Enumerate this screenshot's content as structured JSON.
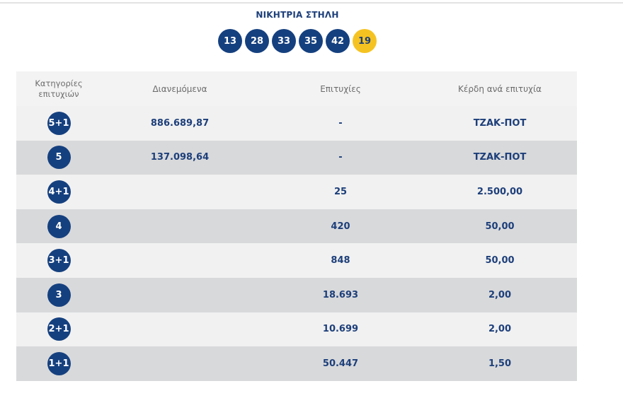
{
  "header": {
    "title": "ΝΙΚΗΤΡΙΑ ΣΤΗΛΗ",
    "numbers": [
      "13",
      "28",
      "33",
      "35",
      "42"
    ],
    "joker": "19"
  },
  "table": {
    "columns": [
      "Κατηγορίες επιτυχιών",
      "Διανεμόμενα",
      "Επιτυχίες",
      "Κέρδη ανά επιτυχία"
    ],
    "rows": [
      {
        "category": "5+1",
        "distributed": "886.689,87",
        "winners": "-",
        "prize": "ΤΖΑΚ-ΠΟΤ"
      },
      {
        "category": "5",
        "distributed": "137.098,64",
        "winners": "-",
        "prize": "ΤΖΑΚ-ΠΟΤ"
      },
      {
        "category": "4+1",
        "distributed": "",
        "winners": "25",
        "prize": "2.500,00"
      },
      {
        "category": "4",
        "distributed": "",
        "winners": "420",
        "prize": "50,00"
      },
      {
        "category": "3+1",
        "distributed": "",
        "winners": "848",
        "prize": "50,00"
      },
      {
        "category": "3",
        "distributed": "",
        "winners": "18.693",
        "prize": "2,00"
      },
      {
        "category": "2+1",
        "distributed": "",
        "winners": "10.699",
        "prize": "2,00"
      },
      {
        "category": "1+1",
        "distributed": "",
        "winners": "50.447",
        "prize": "1,50"
      }
    ]
  },
  "colors": {
    "ball": "#15407f",
    "joker_ball": "#f5c321",
    "text_accent": "#1d3f7a",
    "row_light": "#f1f1f1",
    "row_dark": "#d8d9db"
  }
}
